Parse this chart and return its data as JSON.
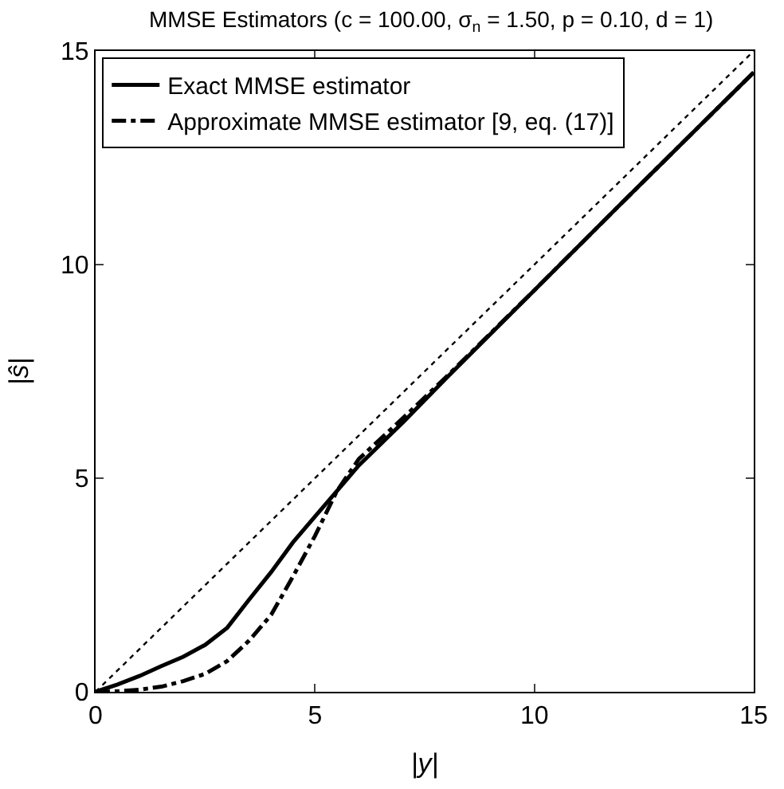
{
  "chart_data": {
    "type": "line",
    "title": "MMSE Estimators (c = 100.00, σ$_{n}$ = 1.50, p = 0.10, d = 1)",
    "xlabel": "|y|",
    "ylabel": "|ŝ|",
    "xlim": [
      0,
      15
    ],
    "ylim": [
      0,
      15
    ],
    "xticks": [
      0,
      5,
      10,
      15
    ],
    "yticks": [
      0,
      5,
      10,
      15
    ],
    "grid": false,
    "legend": "top left",
    "marker": "none",
    "series": [
      {
        "name": "Exact MMSE estimator",
        "color": "#000000",
        "line_style": "solid",
        "x": [
          0,
          0.5,
          1,
          1.5,
          2,
          2.5,
          3,
          3.5,
          4,
          4.5,
          5,
          5.5,
          6,
          7,
          8,
          10,
          12,
          15
        ],
        "values": [
          0,
          0.17,
          0.37,
          0.6,
          0.82,
          1.1,
          1.5,
          2.16,
          2.8,
          3.5,
          4.1,
          4.7,
          5.3,
          6.3,
          7.35,
          9.4,
          11.45,
          14.5
        ]
      },
      {
        "name": "Approximate MMSE estimator [9, eq. (17)]",
        "color": "#000000",
        "line_style": "dashdot",
        "x": [
          0,
          0.5,
          1,
          1.5,
          2,
          2.5,
          3,
          3.5,
          4,
          4.5,
          5,
          5.5,
          6,
          7,
          8,
          10,
          12,
          15
        ],
        "values": [
          0,
          0.01,
          0.05,
          0.12,
          0.25,
          0.42,
          0.72,
          1.2,
          1.8,
          2.7,
          3.65,
          4.7,
          5.45,
          6.4,
          7.38,
          9.4,
          11.45,
          14.5
        ]
      },
      {
        "color": "#000000",
        "line_style": "dotted",
        "x": [
          0,
          15
        ],
        "values": [
          0,
          15
        ]
      }
    ]
  }
}
